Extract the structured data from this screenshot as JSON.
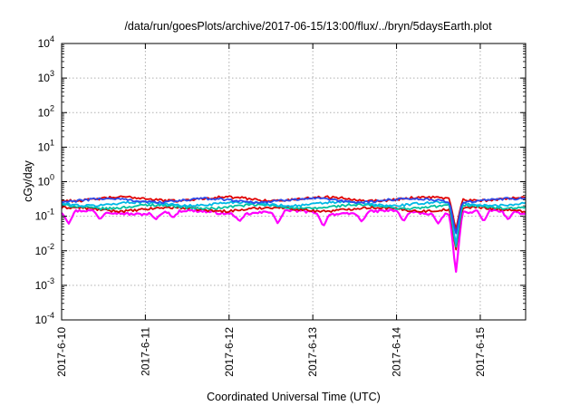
{
  "chart_data": {
    "type": "line",
    "title": "/data/run/goesPlots/archive/2017-06-15/13:00/flux/../bryn/5daysEarth.plot",
    "xlabel": "Coordinated Universal Time (UTC)",
    "ylabel": "cGy/day",
    "yscale": "log",
    "ylim": [
      0.0001,
      10000
    ],
    "xlim": [
      "2017-06-10 00:00",
      "2017-06-15 13:00"
    ],
    "grid": true,
    "x_ticks": [
      "2017-6-10",
      "2017-6-11",
      "2017-6-12",
      "2017-6-13",
      "2017-6-14",
      "2017-6-15"
    ],
    "y_ticks": [
      {
        "base": "10",
        "exp": "-4"
      },
      {
        "base": "10",
        "exp": "-3"
      },
      {
        "base": "10",
        "exp": "-2"
      },
      {
        "base": "10",
        "exp": "-1"
      },
      {
        "base": "10",
        "exp": "0"
      },
      {
        "base": "10",
        "exp": "1"
      },
      {
        "base": "10",
        "exp": "2"
      },
      {
        "base": "10",
        "exp": "3"
      },
      {
        "base": "10",
        "exp": "4"
      }
    ],
    "series": [
      {
        "color": "#ff00ff",
        "base": 0.13,
        "dips": [
          {
            "x": "2017-06-10 02:00",
            "y": 0.06
          },
          {
            "x": "2017-06-10 11:00",
            "y": 0.08
          },
          {
            "x": "2017-06-11 03:00",
            "y": 0.08
          },
          {
            "x": "2017-06-11 08:00",
            "y": 0.09
          },
          {
            "x": "2017-06-12 03:00",
            "y": 0.07
          },
          {
            "x": "2017-06-12 14:00",
            "y": 0.06
          },
          {
            "x": "2017-06-13 03:00",
            "y": 0.05
          },
          {
            "x": "2017-06-13 14:00",
            "y": 0.07
          },
          {
            "x": "2017-06-14 02:00",
            "y": 0.07
          },
          {
            "x": "2017-06-14 12:00",
            "y": 0.06
          },
          {
            "x": "2017-06-14 17:00",
            "y": 0.0022
          },
          {
            "x": "2017-06-15 01:00",
            "y": 0.07
          },
          {
            "x": "2017-06-15 08:00",
            "y": 0.08
          }
        ]
      },
      {
        "color": "#d40000",
        "base": 0.16,
        "dips": [
          {
            "x": "2017-06-14 17:00",
            "y": 0.01
          }
        ]
      },
      {
        "color": "#00c0a0",
        "base": 0.19,
        "dips": [
          {
            "x": "2017-06-14 17:00",
            "y": 0.012
          }
        ]
      },
      {
        "color": "#00b8e6",
        "base": 0.23,
        "dips": [
          {
            "x": "2017-06-14 17:00",
            "y": 0.015
          }
        ]
      },
      {
        "color": "#e00000",
        "base": 0.32,
        "dips": [
          {
            "x": "2017-06-14 17:00",
            "y": 0.04
          }
        ]
      },
      {
        "color": "#2e4ae8",
        "base": 0.29,
        "dips": [
          {
            "x": "2017-06-14 17:00",
            "y": 0.03
          }
        ]
      }
    ]
  }
}
